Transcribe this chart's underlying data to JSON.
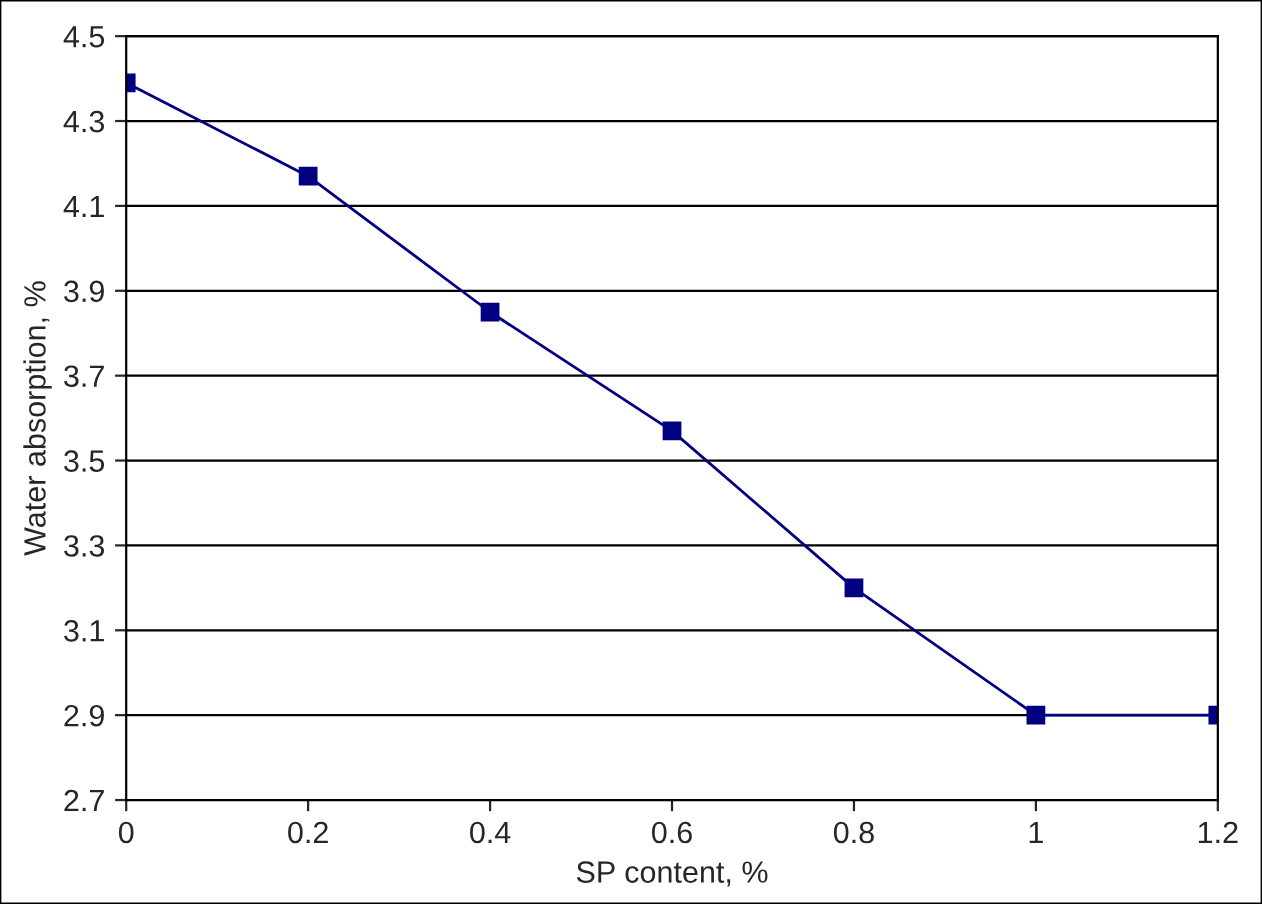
{
  "chart_data": {
    "type": "line",
    "xlabel": "SP content, %",
    "ylabel": "Water absorption, %",
    "x": [
      0,
      0.2,
      0.4,
      0.6,
      0.8,
      1,
      1.2
    ],
    "series": [
      {
        "color": "#000080",
        "values": [
          4.39,
          4.17,
          3.85,
          3.57,
          3.2,
          2.9,
          2.9
        ]
      }
    ],
    "xlim": [
      0,
      1.2
    ],
    "xticks": [
      0,
      0.2,
      0.4,
      0.6,
      0.8,
      1,
      1.2
    ],
    "ylim": [
      2.7,
      4.5
    ],
    "yticks": [
      2.7,
      2.9,
      3.1,
      3.3,
      3.5,
      3.7,
      3.9,
      4.1,
      4.3,
      4.5
    ],
    "grid": "y",
    "marker": "square",
    "line_style": "solid",
    "legend": false
  }
}
